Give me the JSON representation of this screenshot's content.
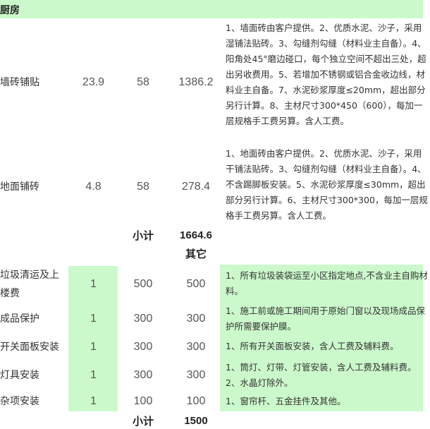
{
  "section_title": "厨房",
  "kitchen_rows": [
    {
      "name": "墙砖铺贴",
      "qty": "23.9",
      "price": "58",
      "total": "1386.2",
      "desc": "1、墙面砖由客户提供。2、优质水泥、沙子，采用湿铺法贴砖。3、勾缝剂勾缝（材料业主自备）。4、阳角处45°磨边碰口，每个独立空间不超出三处，超出另收费用。5、若增加不锈钢或铝合金收边线，材料业主自备。7、水泥砂浆厚度≤20mm，超出部分另行计算。8、主材尺寸300*450（600），每加一层规格手工费另算。含人工费。"
    },
    {
      "name": "地面铺砖",
      "qty": "4.8",
      "price": "58",
      "total": "278.4",
      "desc": "1、地面砖由客户提供。2、优质水泥、沙子，采用干铺法贴砖。3、勾缝剂勾缝（材料业主自备）。4、不含踢脚板安装。5、水泥砂浆厚度≤30mm，超出部分另行计算。6、主材尺寸300*300，每加一层规格手工费另算。含人工费。"
    }
  ],
  "kitchen_subtotal": {
    "label": "小计",
    "value": "1664.6"
  },
  "other_title": "其它",
  "other_rows": [
    {
      "name": "垃圾清运及上楼费",
      "qty": "1",
      "price": "500",
      "total": "500",
      "desc": "1、所有垃圾装袋运至小区指定地点,不含业主自购材料。"
    },
    {
      "name": "成品保护",
      "qty": "1",
      "price": "300",
      "total": "300",
      "desc": "1、施工前或施工期间用于原始门窗以及现场成品保护所需要保护膜。"
    },
    {
      "name": "开关面板安装",
      "qty": "1",
      "price": "300",
      "total": "300",
      "desc": "1、所有开关面板安装，含人工费及辅料费。"
    },
    {
      "name": "灯具安装",
      "qty": "1",
      "price": "300",
      "total": "300",
      "desc": "1、筒灯、灯带、灯管安装，含人工费及辅料费。2、水晶灯除外。"
    },
    {
      "name": "杂项安装",
      "qty": "1",
      "price": "100",
      "total": "100",
      "desc": "1、窗帘杆、五金挂件及其他。"
    }
  ],
  "other_subtotal": {
    "label": "小计",
    "value": "1500"
  },
  "colors": {
    "highlight": "#ccf9cc"
  }
}
